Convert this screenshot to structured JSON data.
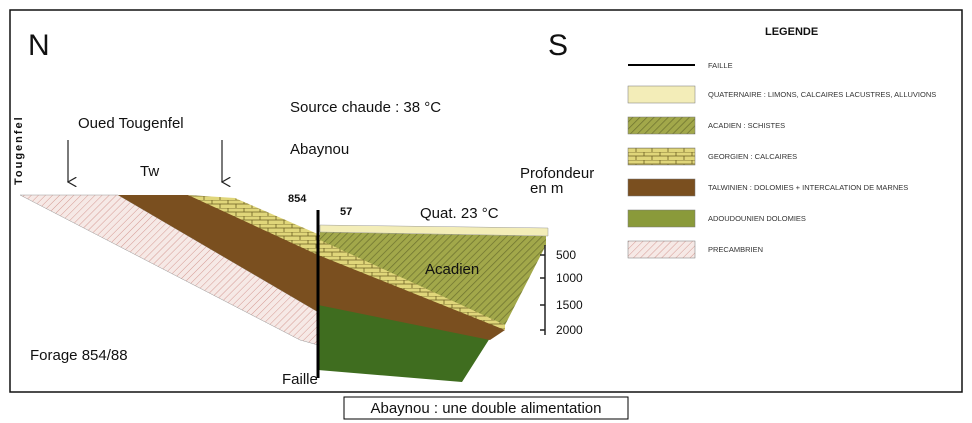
{
  "diagram": {
    "north": "N",
    "south": "S",
    "tougenfel": "Tougenfel",
    "oued": "Oued Tougenfel",
    "source": "Source chaude : 38 °C",
    "abaynou": "Abaynou",
    "tw": "Tw",
    "well_854": "854",
    "well_57": "57",
    "quat": "Quat. 23 °C",
    "depth_title": [
      "Profondeur",
      "en m"
    ],
    "acadien": "Acadien",
    "depth_labels": [
      "500",
      "1000",
      "1500",
      "2000"
    ],
    "forage": "Forage 854/88",
    "faille": "Faille"
  },
  "legend": {
    "title": "LEGENDE",
    "items": [
      "FAILLE",
      "QUATERNAIRE : LIMONS, CALCAIRES LACUSTRES, ALLUVIONS",
      "ACADIEN : SCHISTES",
      "GEORGIEN : CALCAIRES",
      "TALWINIEN : DOLOMIES + INTERCALATION DE MARNES",
      "ADOUDOUNIEN DOLOMIES",
      "PRECAMBRIEN"
    ]
  },
  "caption": "Abaynou : une double alimentation"
}
